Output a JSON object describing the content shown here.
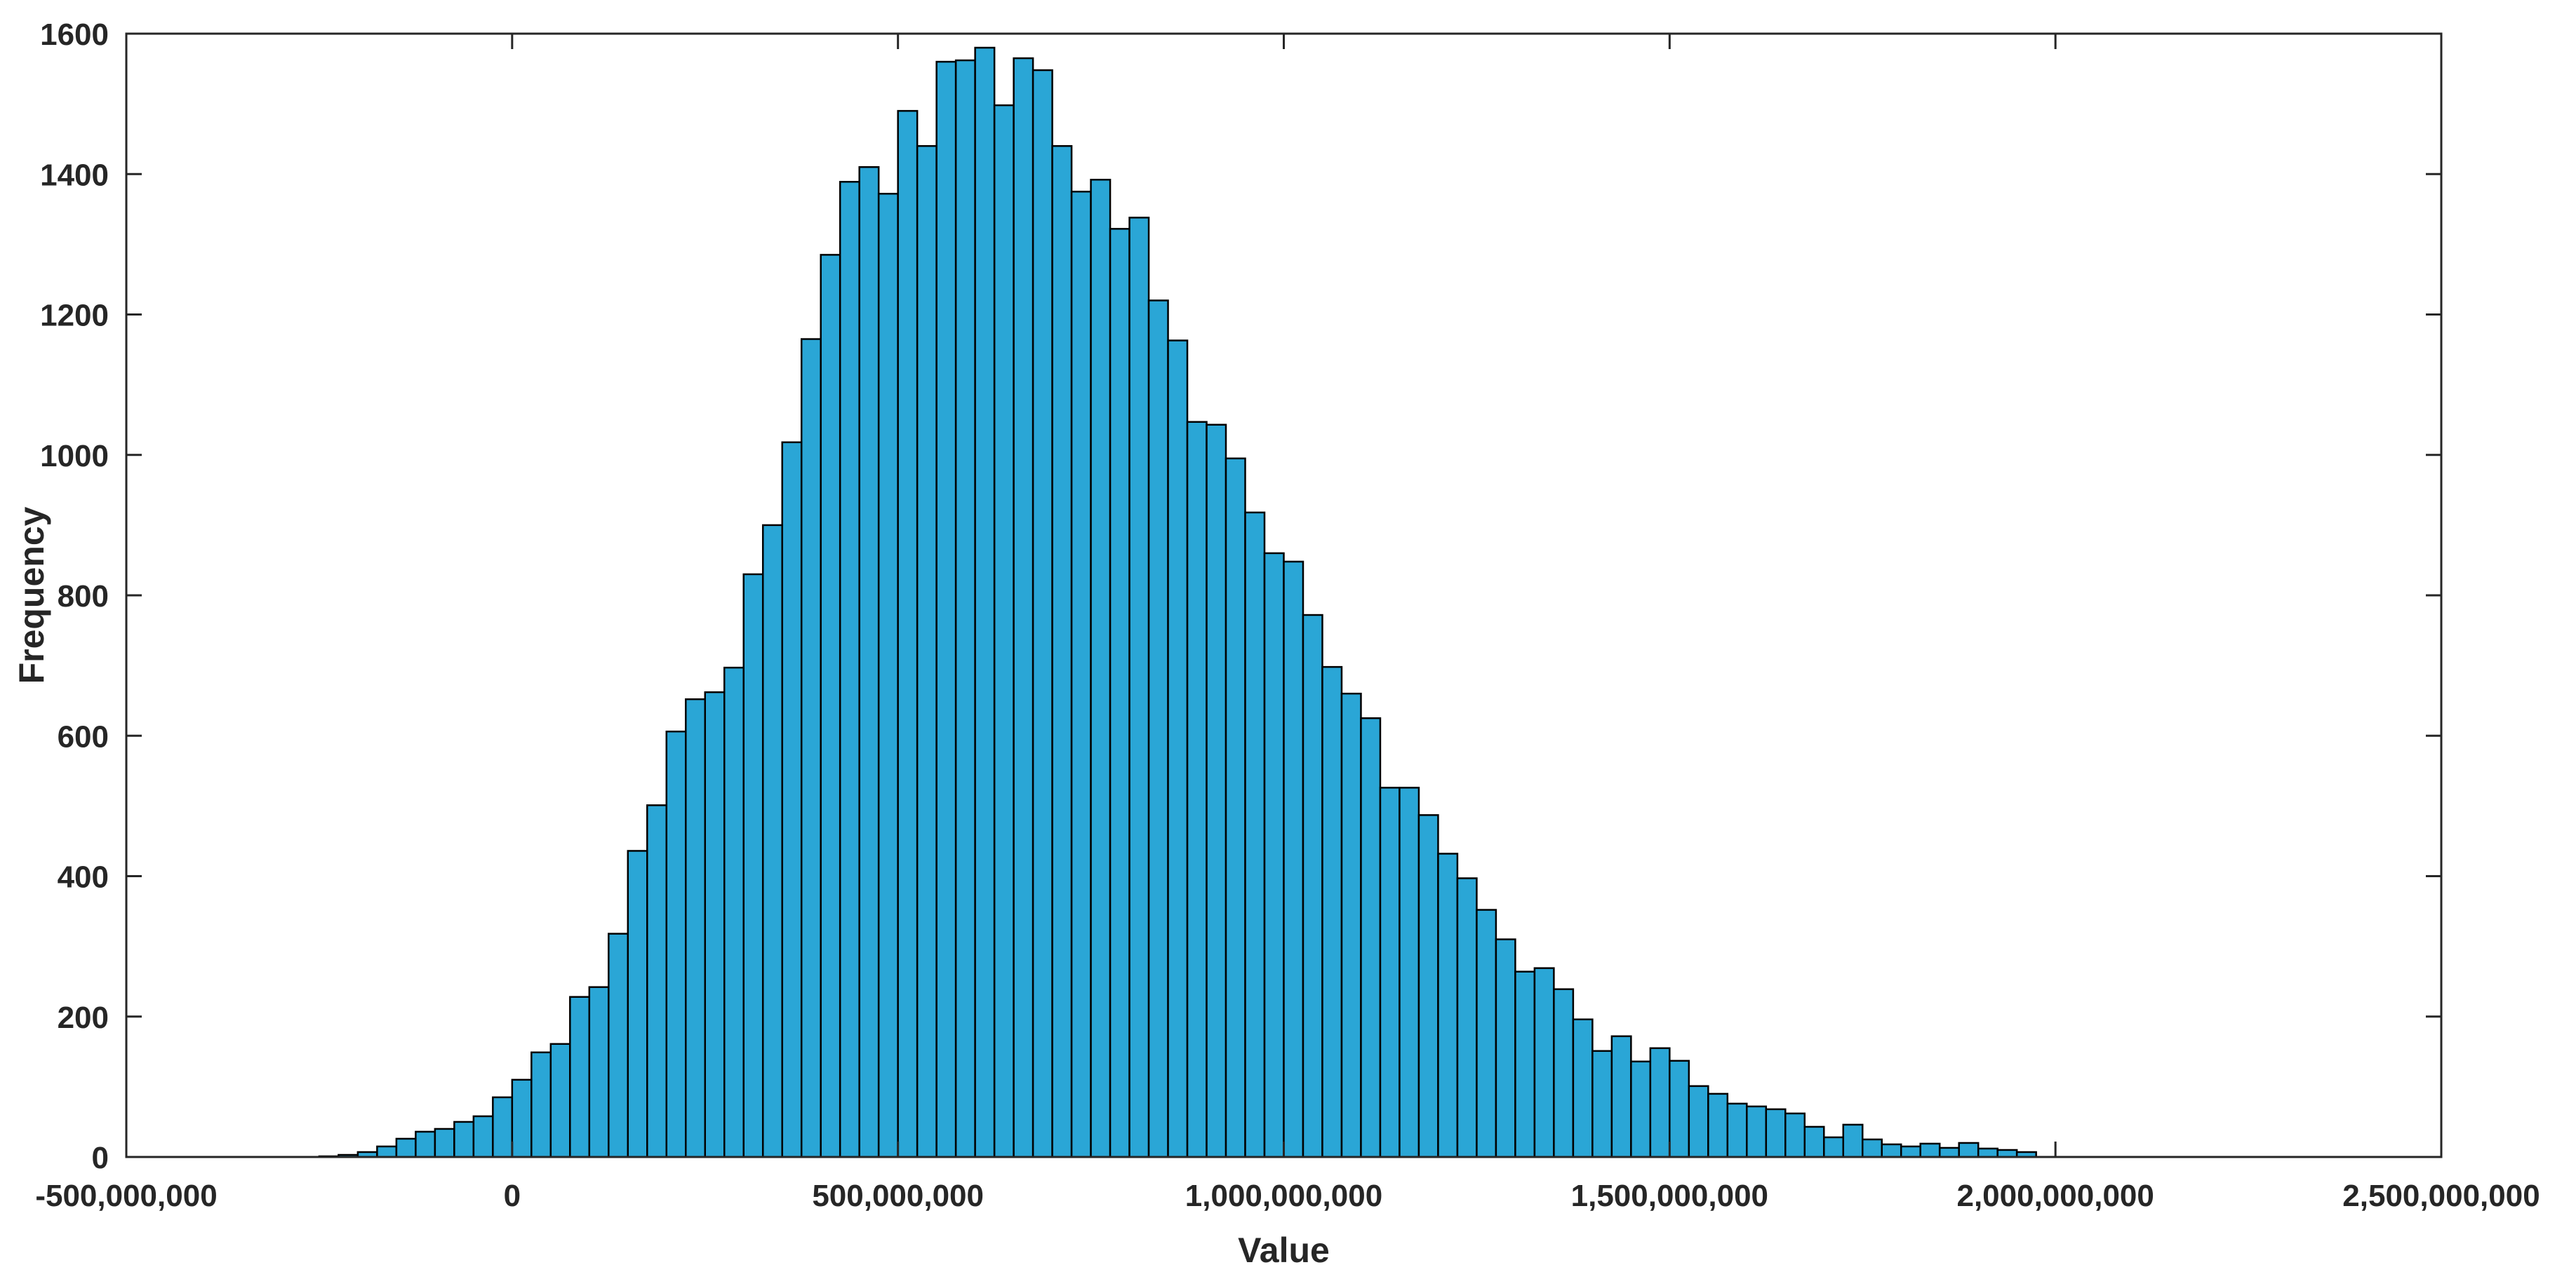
{
  "chart_data": {
    "type": "bar",
    "subtype": "histogram",
    "xlabel": "Value",
    "ylabel": "Frequency",
    "xlim": [
      -500000000,
      2500000000
    ],
    "ylim": [
      0,
      1600
    ],
    "bin_start": -250000000,
    "bin_width": 25000000,
    "x_ticks": [
      {
        "value": -500000000,
        "label": "-500,000,000"
      },
      {
        "value": 0,
        "label": "0"
      },
      {
        "value": 500000000,
        "label": "500,000,000"
      },
      {
        "value": 1000000000,
        "label": "1,000,000,000"
      },
      {
        "value": 1500000000,
        "label": "1,500,000,000"
      },
      {
        "value": 2000000000,
        "label": "2,000,000,000"
      },
      {
        "value": 2500000000,
        "label": "2,500,000,000"
      }
    ],
    "y_ticks": [
      {
        "value": 0,
        "label": "0"
      },
      {
        "value": 200,
        "label": "200"
      },
      {
        "value": 400,
        "label": "400"
      },
      {
        "value": 600,
        "label": "600"
      },
      {
        "value": 800,
        "label": "800"
      },
      {
        "value": 1000,
        "label": "1000"
      },
      {
        "value": 1200,
        "label": "1200"
      },
      {
        "value": 1400,
        "label": "1400"
      },
      {
        "value": 1600,
        "label": "1600"
      }
    ],
    "values": [
      1,
      3,
      7,
      15,
      26,
      36,
      40,
      50,
      58,
      85,
      110,
      149,
      161,
      228,
      242,
      318,
      436,
      501,
      606,
      652,
      662,
      697,
      830,
      900,
      1018,
      1165,
      1285,
      1389,
      1410,
      1372,
      1490,
      1440,
      1560,
      1562,
      1580,
      1498,
      1565,
      1548,
      1440,
      1375,
      1392,
      1322,
      1338,
      1220,
      1163,
      1047,
      1043,
      995,
      918,
      860,
      848,
      772,
      698,
      660,
      625,
      526,
      526,
      487,
      432,
      397,
      352,
      310,
      264,
      269,
      239,
      196,
      151,
      172,
      136,
      155,
      137,
      101,
      90,
      76,
      72,
      68,
      62,
      43,
      28,
      46,
      25,
      18,
      15,
      19,
      13,
      20,
      12,
      10,
      7
    ],
    "grid": false,
    "colors": {
      "bar_fill": "#2aa6d6",
      "bar_edge": "#000000",
      "axes": "#262626"
    }
  }
}
